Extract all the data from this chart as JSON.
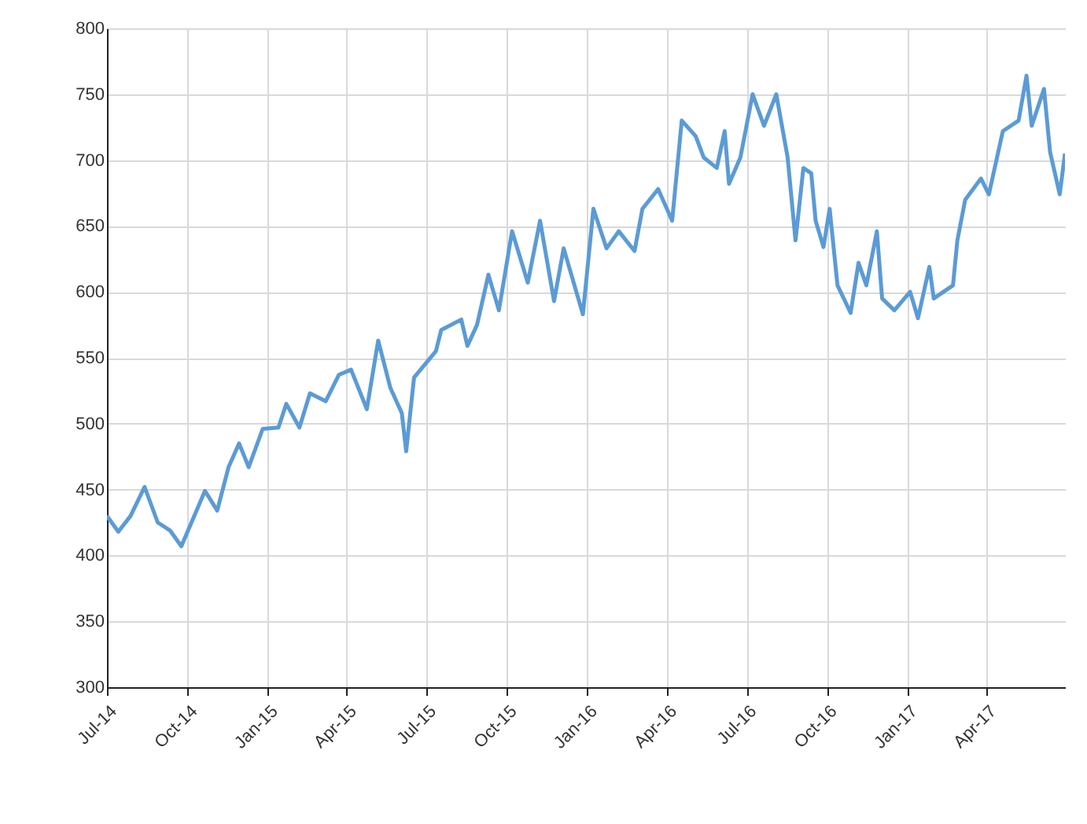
{
  "chart_data": {
    "type": "line",
    "color": "#5b9bd5",
    "grid": true,
    "xlim": [
      "2014-07-01",
      "2017-06-30"
    ],
    "xticks": [
      {
        "value": "2014-07-01",
        "label": "Jul-14"
      },
      {
        "value": "2014-10-01",
        "label": "Oct-14"
      },
      {
        "value": "2015-01-01",
        "label": "Jan-15"
      },
      {
        "value": "2015-04-01",
        "label": "Apr-15"
      },
      {
        "value": "2015-07-01",
        "label": "Jul-15"
      },
      {
        "value": "2015-10-01",
        "label": "Oct-15"
      },
      {
        "value": "2016-01-01",
        "label": "Jan-16"
      },
      {
        "value": "2016-04-01",
        "label": "Apr-16"
      },
      {
        "value": "2016-07-01",
        "label": "Jul-16"
      },
      {
        "value": "2016-10-01",
        "label": "Oct-16"
      },
      {
        "value": "2017-01-01",
        "label": "Jan-17"
      },
      {
        "value": "2017-04-01",
        "label": "Apr-17"
      }
    ],
    "ylim": [
      300,
      800
    ],
    "yticks": [
      300,
      350,
      400,
      450,
      500,
      550,
      600,
      650,
      700,
      750,
      800
    ],
    "x": [
      "2014-07-01",
      "2014-07-14",
      "2014-07-28",
      "2014-08-13",
      "2014-08-28",
      "2014-09-11",
      "2014-09-24",
      "2014-10-21",
      "2014-11-04",
      "2014-11-17",
      "2014-11-29",
      "2014-12-10",
      "2014-12-26",
      "2015-01-13",
      "2015-01-22",
      "2015-02-06",
      "2015-02-18",
      "2015-03-08",
      "2015-03-23",
      "2015-04-06",
      "2015-04-24",
      "2015-05-07",
      "2015-05-21",
      "2015-06-03",
      "2015-06-08",
      "2015-06-17",
      "2015-07-12",
      "2015-07-18",
      "2015-08-10",
      "2015-08-17",
      "2015-08-28",
      "2015-09-10",
      "2015-09-22",
      "2015-10-07",
      "2015-10-25",
      "2015-11-08",
      "2015-11-24",
      "2015-12-05",
      "2015-12-27",
      "2016-01-08",
      "2016-01-23",
      "2016-02-06",
      "2016-02-24",
      "2016-03-04",
      "2016-03-22",
      "2016-04-07",
      "2016-04-18",
      "2016-05-04",
      "2016-05-13",
      "2016-05-28",
      "2016-06-06",
      "2016-06-11",
      "2016-06-24",
      "2016-07-08",
      "2016-07-21",
      "2016-08-04",
      "2016-08-17",
      "2016-08-26",
      "2016-09-04",
      "2016-09-13",
      "2016-09-18",
      "2016-09-27",
      "2016-10-04",
      "2016-10-13",
      "2016-10-28",
      "2016-11-06",
      "2016-11-15",
      "2016-11-27",
      "2016-12-03",
      "2016-12-17",
      "2017-01-04",
      "2017-01-13",
      "2017-01-26",
      "2017-01-31",
      "2017-02-22",
      "2017-02-27",
      "2017-03-08",
      "2017-03-26",
      "2017-04-04",
      "2017-04-20",
      "2017-05-08",
      "2017-05-17",
      "2017-05-23",
      "2017-06-06",
      "2017-06-13",
      "2017-06-24",
      "2017-06-30"
    ],
    "values": [
      430,
      418,
      430,
      452,
      425,
      419,
      407,
      449,
      434,
      467,
      485,
      467,
      496,
      497,
      515,
      497,
      523,
      517,
      537,
      541,
      511,
      563,
      527,
      508,
      479,
      535,
      555,
      571,
      579,
      559,
      575,
      613,
      586,
      646,
      607,
      654,
      593,
      633,
      583,
      663,
      633,
      646,
      631,
      663,
      678,
      654,
      730,
      718,
      702,
      694,
      722,
      682,
      702,
      750,
      726,
      750,
      702,
      639,
      694,
      690,
      654,
      634,
      663,
      605,
      584,
      622,
      605,
      646,
      595,
      586,
      600,
      580,
      619,
      595,
      605,
      639,
      670,
      686,
      674,
      722,
      730,
      764,
      726,
      754,
      706,
      674,
      705
    ]
  }
}
